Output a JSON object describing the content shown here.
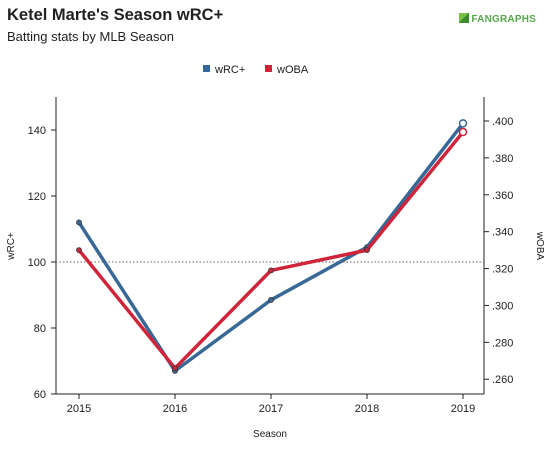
{
  "header": {
    "title": "Ketel Marte's Season wRC+",
    "subtitle": "Batting stats by MLB Season",
    "brand": "FANGRAPHS"
  },
  "colors": {
    "wrc_plus": "#376896",
    "woba": "#d0243a",
    "axis": "#222222",
    "reference_line": "#666666",
    "brand": "#55a84a"
  },
  "chart_data": {
    "type": "line",
    "title": "Ketel Marte's Season wRC+",
    "subtitle": "Batting stats by MLB Season",
    "xlabel": "Season",
    "ylabel": "wRC+",
    "y2label": "wOBA",
    "categories": [
      "2015",
      "2016",
      "2017",
      "2018",
      "2019"
    ],
    "series": [
      {
        "name": "wRC+",
        "axis": "left",
        "color": "#376896",
        "values": [
          112,
          67,
          88.5,
          104.5,
          142
        ]
      },
      {
        "name": "wOBA",
        "axis": "right",
        "color": "#d0243a",
        "values": [
          0.33,
          0.266,
          0.319,
          0.33,
          0.394
        ]
      }
    ],
    "ylim": [
      60,
      150
    ],
    "yticks": [
      "60",
      "80",
      "100",
      "120",
      "140"
    ],
    "y2lim": [
      0.252,
      0.413
    ],
    "y2ticks": [
      ".260",
      ".280",
      ".300",
      ".320",
      ".340",
      ".360",
      ".380",
      ".400"
    ],
    "y2tick_values": [
      0.26,
      0.28,
      0.3,
      0.32,
      0.34,
      0.36,
      0.38,
      0.4
    ],
    "reference_line": {
      "axis": "left",
      "value": 100,
      "style": "dotted"
    },
    "legend": {
      "placement": "top-center",
      "entries": [
        "wRC+",
        "wOBA"
      ]
    },
    "grid": false
  }
}
